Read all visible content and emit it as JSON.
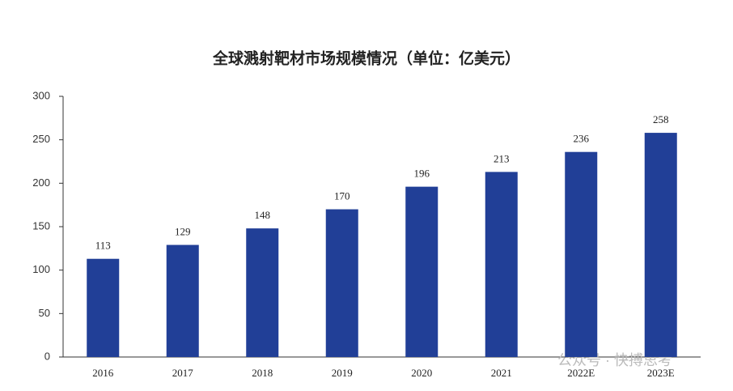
{
  "chart_data": {
    "type": "bar",
    "title": "全球溅射靶材市场规模情况（单位：亿美元）",
    "categories": [
      "2016",
      "2017",
      "2018",
      "2019",
      "2020",
      "2021",
      "2022E",
      "2023E"
    ],
    "values": [
      113,
      129,
      148,
      170,
      196,
      213,
      236,
      258
    ],
    "color": "#213f97",
    "ylim": [
      0,
      300
    ],
    "yticks": [
      0,
      50,
      100,
      150,
      200,
      250,
      300
    ],
    "grid": false,
    "watermark": "公众号 · 快搏思考"
  }
}
